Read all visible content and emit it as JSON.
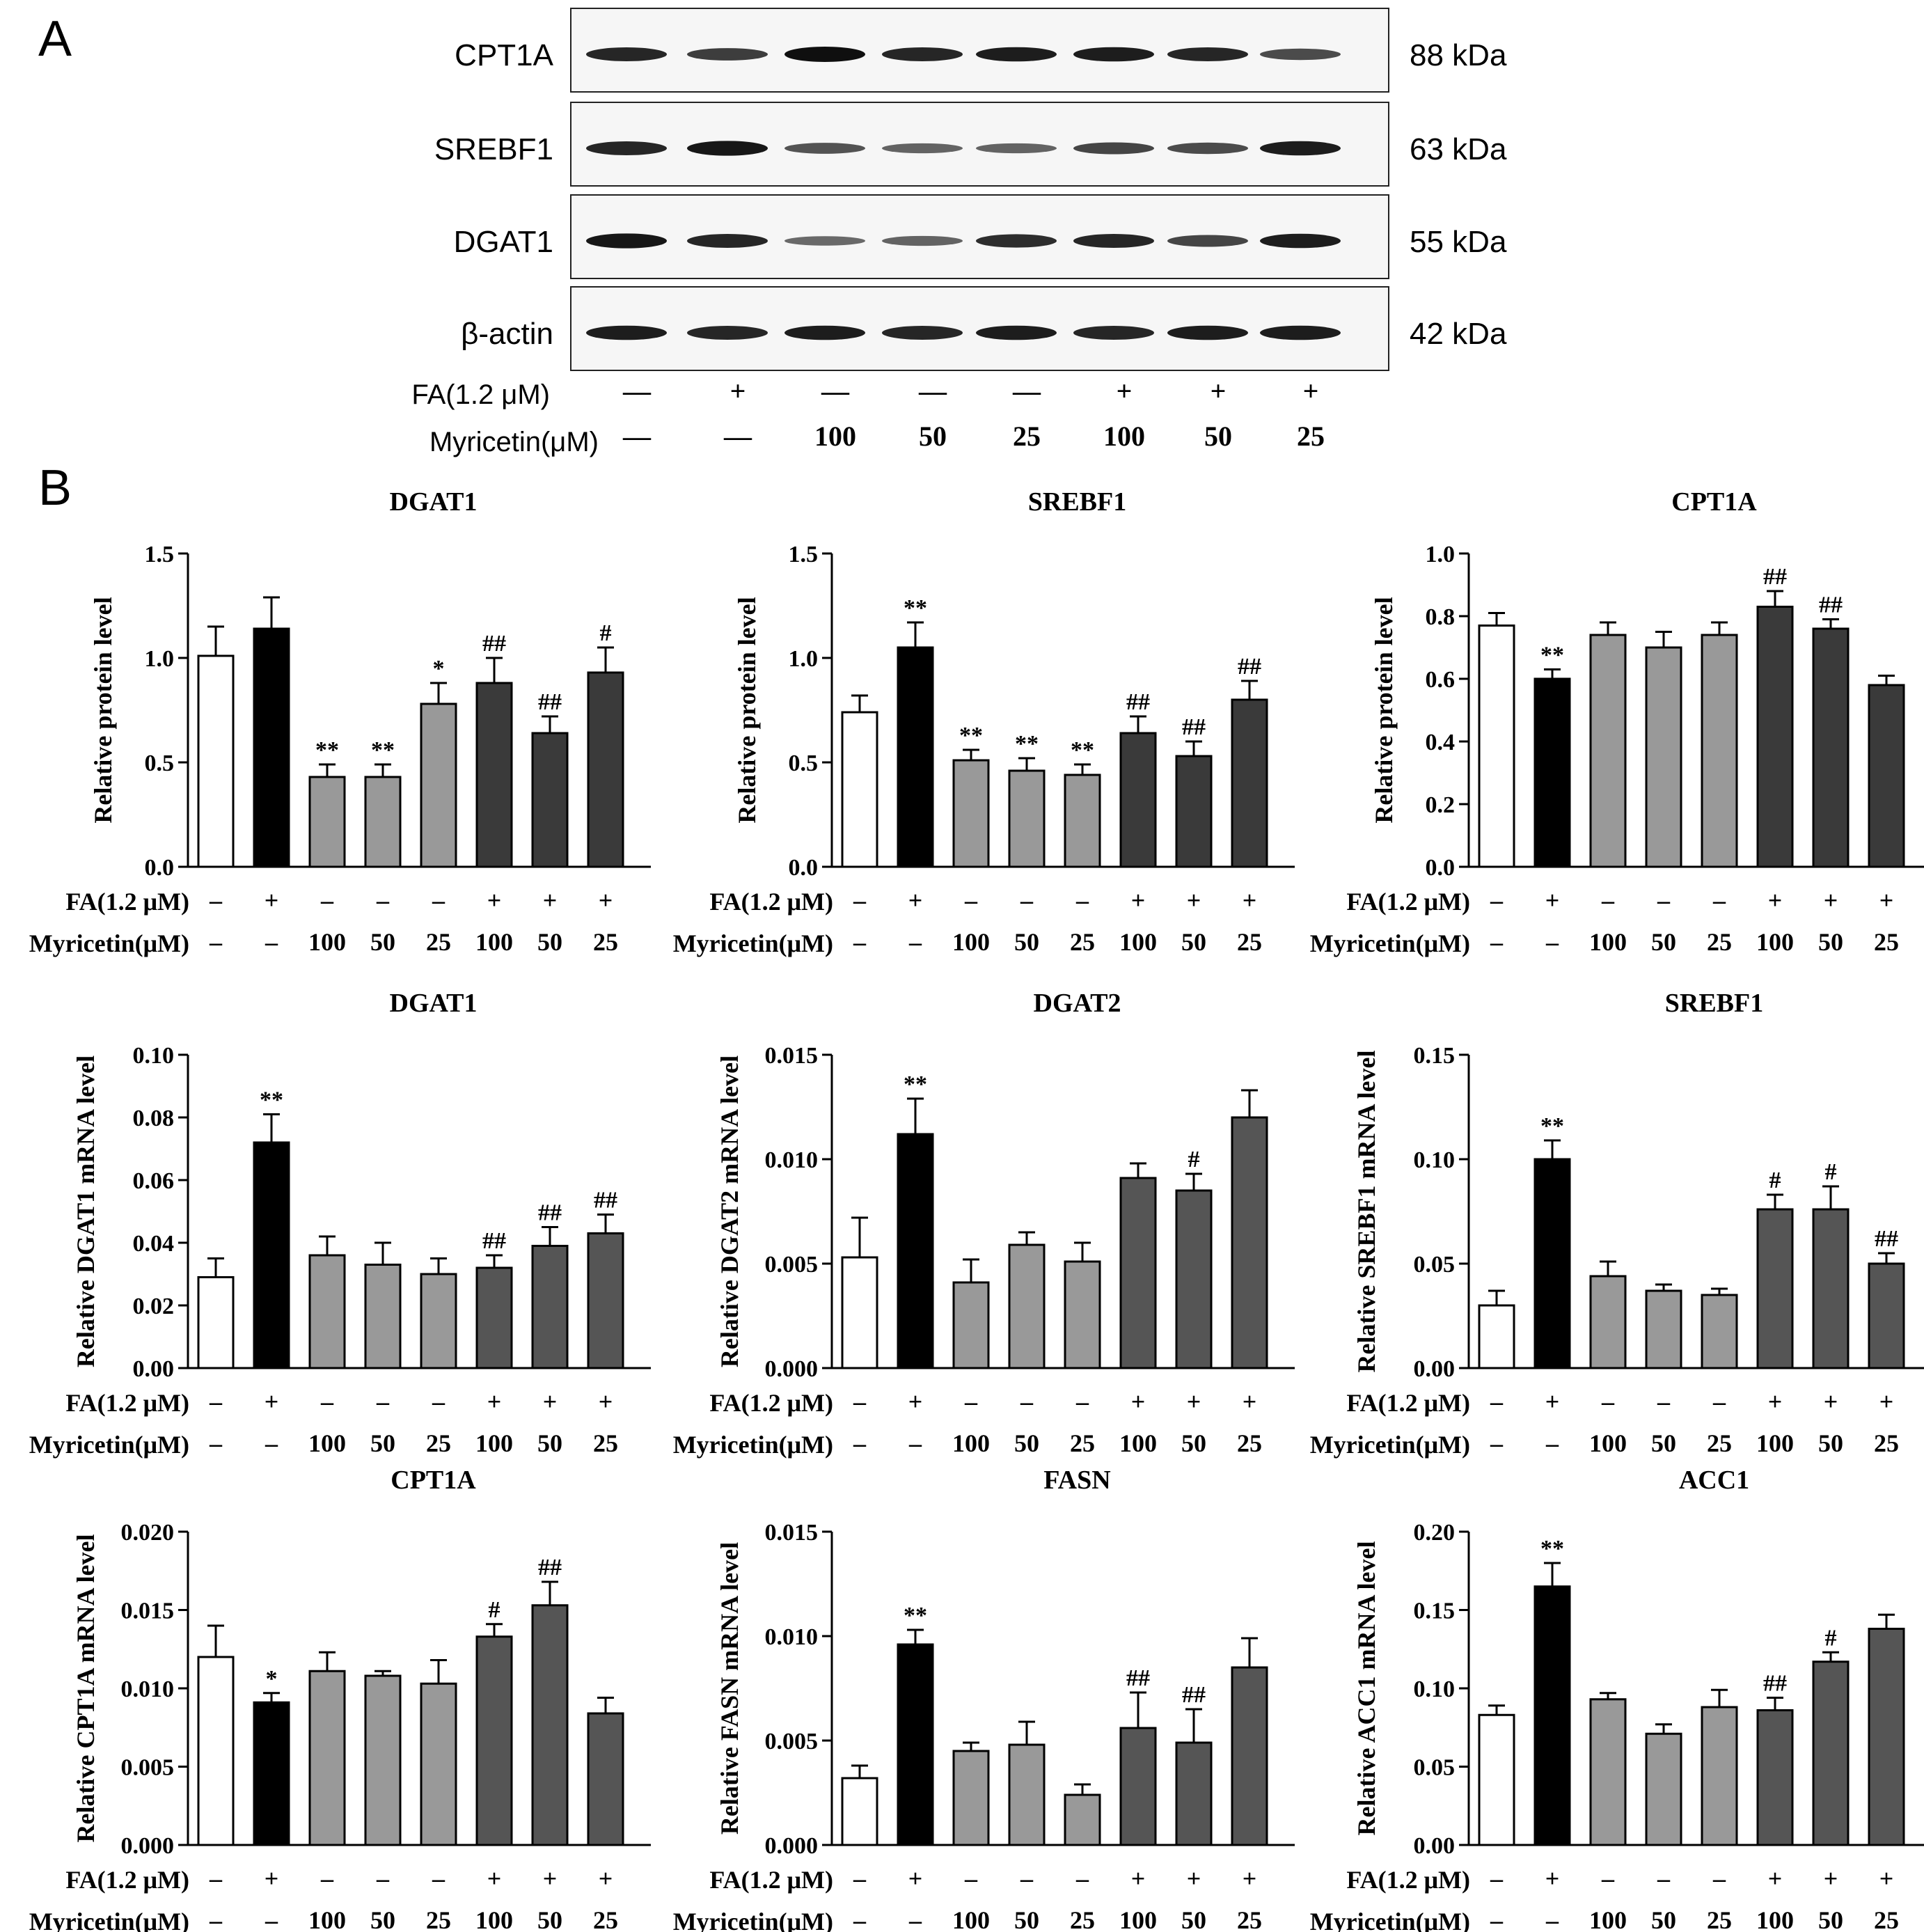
{
  "panel_labels": {
    "a": "A",
    "b": "B"
  },
  "western_blot": {
    "rows": [
      {
        "name": "CPT1A",
        "kda": "88 kDa",
        "bands": [
          0.85,
          0.7,
          1.0,
          0.85,
          0.9,
          0.9,
          0.85,
          0.6
        ]
      },
      {
        "name": "SREBF1",
        "kda": "63 kDa",
        "bands": [
          0.85,
          0.95,
          0.55,
          0.45,
          0.45,
          0.65,
          0.6,
          0.9
        ]
      },
      {
        "name": "DGAT1",
        "kda": "55 kDa",
        "bands": [
          0.95,
          0.85,
          0.4,
          0.45,
          0.8,
          0.85,
          0.65,
          0.9
        ]
      },
      {
        "name": "β-actin",
        "kda": "42 kDa",
        "bands": [
          0.9,
          0.85,
          0.9,
          0.85,
          0.9,
          0.85,
          0.9,
          0.9
        ]
      }
    ],
    "fa_label": "FA(1.2 μM)",
    "myricetin_label": "Myricetin(μM)",
    "fa_values": [
      "—",
      "+",
      "—",
      "—",
      "—",
      "+",
      "+",
      "+"
    ],
    "myricetin_values": [
      "—",
      "—",
      "100",
      "50",
      "25",
      "100",
      "50",
      "25"
    ]
  },
  "conditions": {
    "fa_label": "FA(1.2 μM)",
    "myricetin_label": "Myricetin(μM)",
    "fa_values": [
      "–",
      "+",
      "–",
      "–",
      "–",
      "+",
      "+",
      "+"
    ],
    "myricetin_values": [
      "–",
      "–",
      "100",
      "50",
      "25",
      "100",
      "50",
      "25"
    ]
  },
  "colors": {
    "control": "#ffffff",
    "model": "#000000",
    "myricetin": "#999999",
    "fa_myricetin_protein": "#3a3a3a",
    "fa_myricetin_mrna": "#555555"
  },
  "chart_data": [
    {
      "type": "bar",
      "title": "DGAT1",
      "ylabel": "Relative protein level",
      "ylim": [
        0,
        1.5
      ],
      "ticks": [
        "0.0",
        "0.5",
        "1.0",
        "1.5"
      ],
      "values": [
        1.01,
        1.14,
        0.43,
        0.43,
        0.78,
        0.88,
        0.64,
        0.93
      ],
      "errors": [
        0.14,
        0.15,
        0.06,
        0.06,
        0.1,
        0.12,
        0.08,
        0.12
      ],
      "significance": [
        "",
        "",
        "**",
        "**",
        "*",
        "##",
        "##",
        "#"
      ]
    },
    {
      "type": "bar",
      "title": "SREBF1",
      "ylabel": "Relative protein level",
      "ylim": [
        0,
        1.5
      ],
      "ticks": [
        "0.0",
        "0.5",
        "1.0",
        "1.5"
      ],
      "values": [
        0.74,
        1.05,
        0.51,
        0.46,
        0.44,
        0.64,
        0.53,
        0.8
      ],
      "errors": [
        0.08,
        0.12,
        0.05,
        0.06,
        0.05,
        0.08,
        0.07,
        0.09
      ],
      "significance": [
        "",
        "**",
        "**",
        "**",
        "**",
        "##",
        "##",
        "##"
      ]
    },
    {
      "type": "bar",
      "title": "CPT1A",
      "ylabel": "Relative protein level",
      "ylim": [
        0,
        1.0
      ],
      "ticks": [
        "0.0",
        "0.2",
        "0.4",
        "0.6",
        "0.8",
        "1.0"
      ],
      "values": [
        0.77,
        0.6,
        0.74,
        0.7,
        0.74,
        0.83,
        0.76,
        0.58
      ],
      "errors": [
        0.04,
        0.03,
        0.04,
        0.05,
        0.04,
        0.05,
        0.03,
        0.03
      ],
      "significance": [
        "",
        "**",
        "",
        "",
        "",
        "##",
        "##",
        ""
      ]
    },
    {
      "type": "bar",
      "title": "DGAT1",
      "ylabel": "Relative DGAT1 mRNA level",
      "ylim": [
        0,
        0.1
      ],
      "ticks": [
        "0.00",
        "0.02",
        "0.04",
        "0.06",
        "0.08",
        "0.10"
      ],
      "values": [
        0.029,
        0.072,
        0.036,
        0.033,
        0.03,
        0.032,
        0.039,
        0.043
      ],
      "errors": [
        0.006,
        0.009,
        0.006,
        0.007,
        0.005,
        0.004,
        0.006,
        0.006
      ],
      "significance": [
        "",
        "**",
        "",
        "",
        "",
        "##",
        "##",
        "##"
      ]
    },
    {
      "type": "bar",
      "title": "DGAT2",
      "ylabel": "Relative DGAT2 mRNA level",
      "ylim": [
        0,
        0.015
      ],
      "ticks": [
        "0.000",
        "0.005",
        "0.010",
        "0.015"
      ],
      "values": [
        0.0053,
        0.0112,
        0.0041,
        0.0059,
        0.0051,
        0.0091,
        0.0085,
        0.012
      ],
      "errors": [
        0.0019,
        0.0017,
        0.0011,
        0.0006,
        0.0009,
        0.0007,
        0.0008,
        0.0013
      ],
      "significance": [
        "",
        "**",
        "",
        "",
        "",
        "",
        "#",
        ""
      ]
    },
    {
      "type": "bar",
      "title": "SREBF1",
      "ylabel": "Relative SREBF1 mRNA level",
      "ylim": [
        0,
        0.15
      ],
      "ticks": [
        "0.00",
        "0.05",
        "0.10",
        "0.15"
      ],
      "values": [
        0.03,
        0.1,
        0.044,
        0.037,
        0.035,
        0.076,
        0.076,
        0.05
      ],
      "errors": [
        0.007,
        0.009,
        0.007,
        0.003,
        0.003,
        0.007,
        0.011,
        0.005
      ],
      "significance": [
        "",
        "**",
        "",
        "",
        "",
        "#",
        "#",
        "##"
      ]
    },
    {
      "type": "bar",
      "title": "CPT1A",
      "ylabel": "Relative CPT1A mRNA level",
      "ylim": [
        0,
        0.02
      ],
      "ticks": [
        "0.000",
        "0.005",
        "0.010",
        "0.015",
        "0.020"
      ],
      "values": [
        0.012,
        0.0091,
        0.0111,
        0.0108,
        0.0103,
        0.0133,
        0.0153,
        0.0084
      ],
      "errors": [
        0.002,
        0.0006,
        0.0012,
        0.0003,
        0.0015,
        0.0008,
        0.0015,
        0.001
      ],
      "significance": [
        "",
        "*",
        "",
        "",
        "",
        "#",
        "##",
        ""
      ]
    },
    {
      "type": "bar",
      "title": "FASN",
      "ylabel": "Relative FASN mRNA level",
      "ylim": [
        0,
        0.015
      ],
      "ticks": [
        "0.000",
        "0.005",
        "0.010",
        "0.015"
      ],
      "values": [
        0.0032,
        0.0096,
        0.0045,
        0.0048,
        0.0024,
        0.0056,
        0.0049,
        0.0085
      ],
      "errors": [
        0.0006,
        0.0007,
        0.0004,
        0.0011,
        0.0005,
        0.0017,
        0.0016,
        0.0014
      ],
      "significance": [
        "",
        "**",
        "",
        "",
        "",
        "##",
        "##",
        ""
      ]
    },
    {
      "type": "bar",
      "title": "ACC1",
      "ylabel": "Relative ACC1 mRNA level",
      "ylim": [
        0,
        0.2
      ],
      "ticks": [
        "0.00",
        "0.05",
        "0.10",
        "0.15",
        "0.20"
      ],
      "values": [
        0.083,
        0.165,
        0.093,
        0.071,
        0.088,
        0.086,
        0.117,
        0.138
      ],
      "errors": [
        0.006,
        0.015,
        0.004,
        0.006,
        0.011,
        0.008,
        0.006,
        0.009
      ],
      "significance": [
        "",
        "**",
        "",
        "",
        "",
        "##",
        "#",
        ""
      ]
    }
  ]
}
